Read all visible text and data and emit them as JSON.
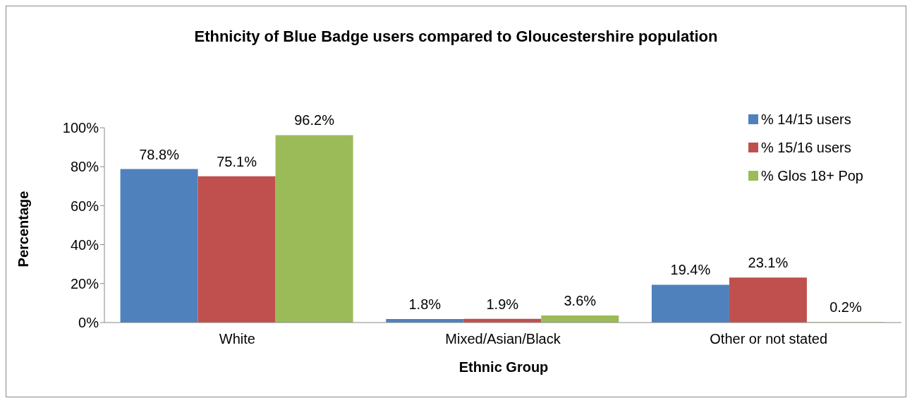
{
  "chart_data": {
    "type": "bar",
    "title": "Ethnicity of Blue Badge users compared to Gloucestershire population",
    "xlabel": "Ethnic Group",
    "ylabel": "Percentage",
    "categories": [
      "White",
      "Mixed/Asian/Black",
      "Other or not stated"
    ],
    "series": [
      {
        "name": "% 14/15 users",
        "color": "#4f81bd",
        "values": [
          78.8,
          1.8,
          19.4
        ],
        "value_labels": [
          "78.8%",
          "1.8%",
          "19.4%"
        ]
      },
      {
        "name": "% 15/16 users",
        "color": "#c0504d",
        "values": [
          75.1,
          1.9,
          23.1
        ],
        "value_labels": [
          "75.1%",
          "1.9%",
          "23.1%"
        ]
      },
      {
        "name": "% Glos 18+ Pop",
        "color": "#9bbb59",
        "values": [
          96.2,
          3.6,
          0.2
        ],
        "value_labels": [
          "96.2%",
          "3.6%",
          "0.2%"
        ]
      }
    ],
    "ylim": [
      0,
      100
    ],
    "yticks": [
      {
        "value": 0,
        "label": "0%"
      },
      {
        "value": 20,
        "label": "20%"
      },
      {
        "value": 40,
        "label": "40%"
      },
      {
        "value": 60,
        "label": "60%"
      },
      {
        "value": 80,
        "label": "80%"
      },
      {
        "value": 100,
        "label": "100%"
      }
    ],
    "grid": false,
    "legend": "top right"
  }
}
